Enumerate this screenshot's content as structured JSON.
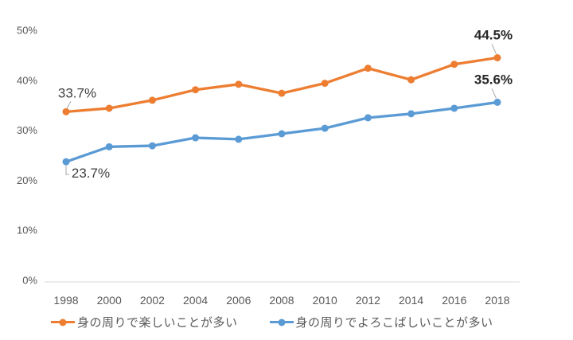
{
  "chart_data": {
    "type": "line",
    "title": "",
    "xlabel": "",
    "ylabel": "",
    "x_labels": [
      "1998",
      "2000",
      "2002",
      "2004",
      "2006",
      "2008",
      "2010",
      "2012",
      "2014",
      "2016",
      "2018"
    ],
    "y_ticks": [
      "0%",
      "10%",
      "20%",
      "30%",
      "40%",
      "50%"
    ],
    "ylim": [
      0,
      50
    ],
    "grid": false,
    "legend_position": "bottom",
    "series": [
      {
        "name": "身の周りで楽しいことが多い",
        "color": "#ED7D31",
        "values": [
          33.7,
          34.4,
          36.0,
          38.1,
          39.2,
          37.4,
          39.4,
          42.4,
          40.1,
          43.2,
          44.5
        ]
      },
      {
        "name": "身の周りでよろこばしいことが多い",
        "color": "#5B9BD5",
        "values": [
          23.7,
          26.7,
          26.9,
          28.5,
          28.2,
          29.3,
          30.4,
          32.5,
          33.3,
          34.4,
          35.6
        ]
      }
    ],
    "annotations": [
      {
        "series": 0,
        "index": 0,
        "text": "33.7%",
        "bold": false,
        "placement": "above-left"
      },
      {
        "series": 0,
        "index": 10,
        "text": "44.5%",
        "bold": true,
        "placement": "above"
      },
      {
        "series": 1,
        "index": 0,
        "text": "23.7%",
        "bold": false,
        "placement": "below-right"
      },
      {
        "series": 1,
        "index": 10,
        "text": "35.6%",
        "bold": true,
        "placement": "above"
      }
    ]
  },
  "colors": {
    "background": "#FFFFFF",
    "axis_line": "#D9D9D9",
    "tick_label": "#595959",
    "legend_label": "#595959",
    "annotation": "#404040",
    "annotation_bold": "#262626",
    "leader_line": "#A6A6A6"
  }
}
